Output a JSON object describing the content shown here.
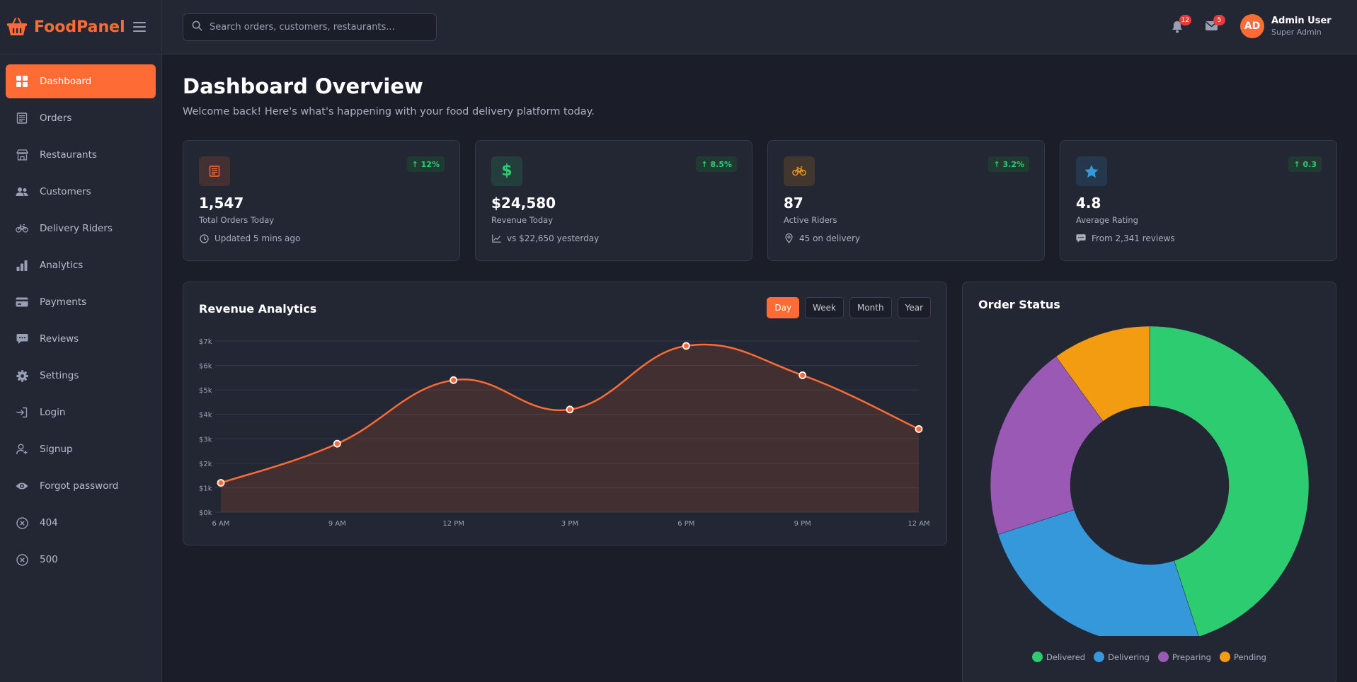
{
  "brand": {
    "name": "FoodPanel",
    "logo_icon": "basket-icon",
    "accent": "#ff6b35"
  },
  "sidebar": {
    "items": [
      {
        "label": "Dashboard",
        "icon": "dashboard-icon",
        "active": true
      },
      {
        "label": "Orders",
        "icon": "receipt-icon"
      },
      {
        "label": "Restaurants",
        "icon": "store-icon"
      },
      {
        "label": "Customers",
        "icon": "users-icon"
      },
      {
        "label": "Delivery Riders",
        "icon": "bicycle-icon"
      },
      {
        "label": "Analytics",
        "icon": "bar-chart-icon"
      },
      {
        "label": "Payments",
        "icon": "credit-card-icon"
      },
      {
        "label": "Reviews",
        "icon": "comment-icon"
      },
      {
        "label": "Settings",
        "icon": "gear-icon"
      },
      {
        "label": "Login",
        "icon": "login-icon"
      },
      {
        "label": "Signup",
        "icon": "user-add-icon"
      },
      {
        "label": "Forgot password",
        "icon": "eye-icon"
      },
      {
        "label": "404",
        "icon": "x-circle-icon"
      },
      {
        "label": "500",
        "icon": "x-circle-icon"
      }
    ]
  },
  "header": {
    "search_placeholder": "Search orders, customers, restaurants...",
    "notifications_count": "12",
    "messages_count": "5",
    "user": {
      "initials": "AD",
      "name": "Admin User",
      "role": "Super Admin"
    }
  },
  "page": {
    "title": "Dashboard Overview",
    "subtitle": "Welcome back! Here's what's happening with your food delivery platform today."
  },
  "stats": [
    {
      "value": "1,547",
      "label": "Total Orders Today",
      "trend": "↑ 12%",
      "footer": "Updated 5 mins ago",
      "icon": "receipt-icon",
      "footer_icon": "clock-icon",
      "color": "#ff6b35"
    },
    {
      "value": "$24,580",
      "label": "Revenue Today",
      "trend": "↑ 8.5%",
      "footer": "vs $22,650 yesterday",
      "icon": "dollar-icon",
      "footer_icon": "trend-line-icon",
      "color": "#2ecc71"
    },
    {
      "value": "87",
      "label": "Active Riders",
      "trend": "↑ 3.2%",
      "footer": "45 on delivery",
      "icon": "bicycle-icon",
      "footer_icon": "location-pin-icon",
      "color": "#f39c12"
    },
    {
      "value": "4.8",
      "label": "Average Rating",
      "trend": "↑ 0.3",
      "footer": "From 2,341 reviews",
      "icon": "star-icon",
      "footer_icon": "comment-icon",
      "color": "#3498db"
    }
  ],
  "revenue_panel": {
    "title": "Revenue Analytics",
    "ranges": [
      "Day",
      "Week",
      "Month",
      "Year"
    ],
    "active_range": "Day"
  },
  "order_panel": {
    "title": "Order Status"
  },
  "chart_data": [
    {
      "type": "area",
      "title": "Revenue Analytics",
      "categories": [
        "6 AM",
        "9 AM",
        "12 PM",
        "3 PM",
        "6 PM",
        "9 PM",
        "12 AM"
      ],
      "values": [
        1200,
        2800,
        5400,
        4200,
        6800,
        5600,
        3400
      ],
      "yticks": [
        "$0k",
        "$1k",
        "$2k",
        "$3k",
        "$4k",
        "$5k",
        "$6k",
        "$7k"
      ],
      "ylim": [
        0,
        7000
      ],
      "grid": true,
      "line_color": "#ff6b35"
    },
    {
      "type": "pie",
      "title": "Order Status",
      "donut": true,
      "categories": [
        "Delivered",
        "Delivering",
        "Preparing",
        "Pending"
      ],
      "values": [
        45,
        25,
        20,
        10
      ],
      "colors": [
        "#2ecc71",
        "#3498db",
        "#9b59b6",
        "#f39c12"
      ],
      "legend": "bottom"
    }
  ]
}
